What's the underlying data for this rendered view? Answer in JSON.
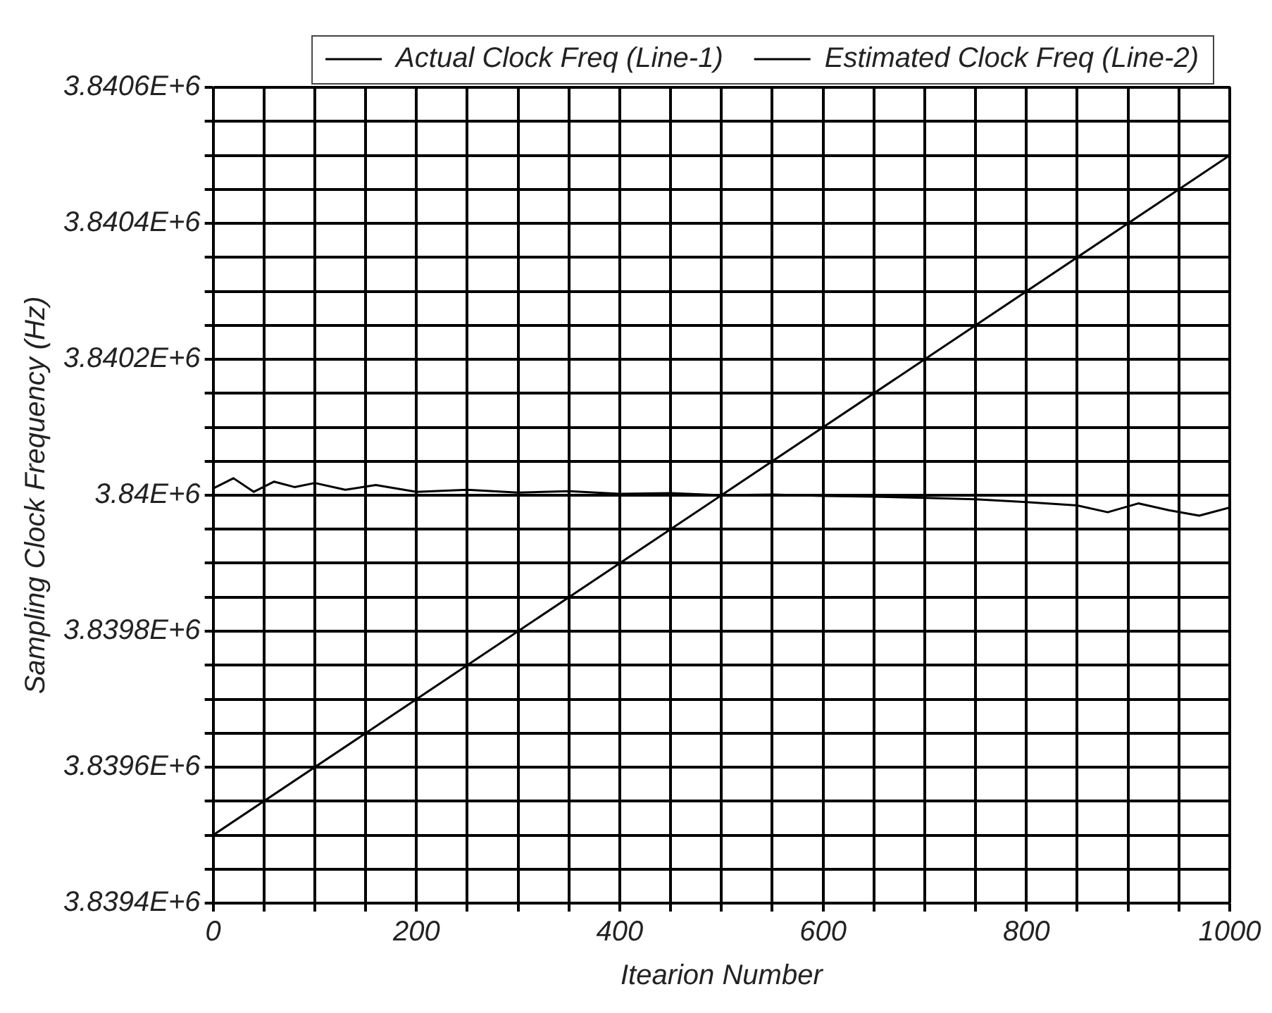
{
  "chart_data": {
    "type": "line",
    "xlabel": "Itearion Number",
    "ylabel": "Sampling Clock Frequency (Hz)",
    "xlim": [
      0,
      1000
    ],
    "ylim": [
      3839400,
      3840600
    ],
    "xticks": [
      0,
      {
        "value": 50,
        "label": null
      },
      200,
      {
        "value": 100,
        "label": null
      },
      {
        "value": 150,
        "label": null
      },
      {
        "value": 250,
        "label": null
      },
      {
        "value": 300,
        "label": null
      },
      {
        "value": 350,
        "label": null
      },
      400,
      {
        "value": 450,
        "label": null
      },
      {
        "value": 500,
        "label": null
      },
      {
        "value": 550,
        "label": null
      },
      600,
      {
        "value": 650,
        "label": null
      },
      {
        "value": 700,
        "label": null
      },
      {
        "value": 750,
        "label": null
      },
      800,
      {
        "value": 850,
        "label": null
      },
      {
        "value": 900,
        "label": null
      },
      {
        "value": 950,
        "label": null
      },
      1000
    ],
    "yticks": [
      {
        "value": 3839400,
        "label": "3.8394E+6"
      },
      {
        "value": 3839450,
        "label": null
      },
      {
        "value": 3839500,
        "label": null
      },
      {
        "value": 3839550,
        "label": null
      },
      {
        "value": 3839600,
        "label": "3.8396E+6"
      },
      {
        "value": 3839650,
        "label": null
      },
      {
        "value": 3839700,
        "label": null
      },
      {
        "value": 3839750,
        "label": null
      },
      {
        "value": 3839800,
        "label": "3.8398E+6"
      },
      {
        "value": 3839850,
        "label": null
      },
      {
        "value": 3839900,
        "label": null
      },
      {
        "value": 3839950,
        "label": null
      },
      {
        "value": 3840000,
        "label": "3.84E+6"
      },
      {
        "value": 3840050,
        "label": null
      },
      {
        "value": 3840100,
        "label": null
      },
      {
        "value": 3840150,
        "label": null
      },
      {
        "value": 3840200,
        "label": "3.8402E+6"
      },
      {
        "value": 3840250,
        "label": null
      },
      {
        "value": 3840300,
        "label": null
      },
      {
        "value": 3840350,
        "label": null
      },
      {
        "value": 3840400,
        "label": "3.8404E+6"
      },
      {
        "value": 3840450,
        "label": null
      },
      {
        "value": 3840500,
        "label": null
      },
      {
        "value": 3840550,
        "label": null
      },
      {
        "value": 3840600,
        "label": "3.8406E+6"
      }
    ],
    "grid": true,
    "legend": "top right",
    "marker": "none",
    "line_style": "solid",
    "series": [
      {
        "name": "Actual Clock Freq (Line-1)",
        "color": "#000000",
        "x": [
          0,
          250,
          500,
          750,
          1000
        ],
        "values": [
          3839500,
          3839750,
          3840000,
          3840250,
          3840500
        ]
      },
      {
        "name": "Estimated Clock Freq (Line-2)",
        "color": "#000000",
        "x": [
          0,
          20,
          40,
          60,
          80,
          100,
          130,
          160,
          200,
          250,
          300,
          350,
          400,
          450,
          500,
          550,
          600,
          650,
          700,
          750,
          800,
          850,
          880,
          910,
          940,
          970,
          1000
        ],
        "values": [
          3840010,
          3840025,
          3840005,
          3840020,
          3840012,
          3840018,
          3840008,
          3840015,
          3840005,
          3840008,
          3840004,
          3840006,
          3840002,
          3840003,
          3840000,
          3840001,
          3839999,
          3839998,
          3839996,
          3839994,
          3839990,
          3839985,
          3839975,
          3839988,
          3839978,
          3839970,
          3839982
        ]
      }
    ]
  }
}
